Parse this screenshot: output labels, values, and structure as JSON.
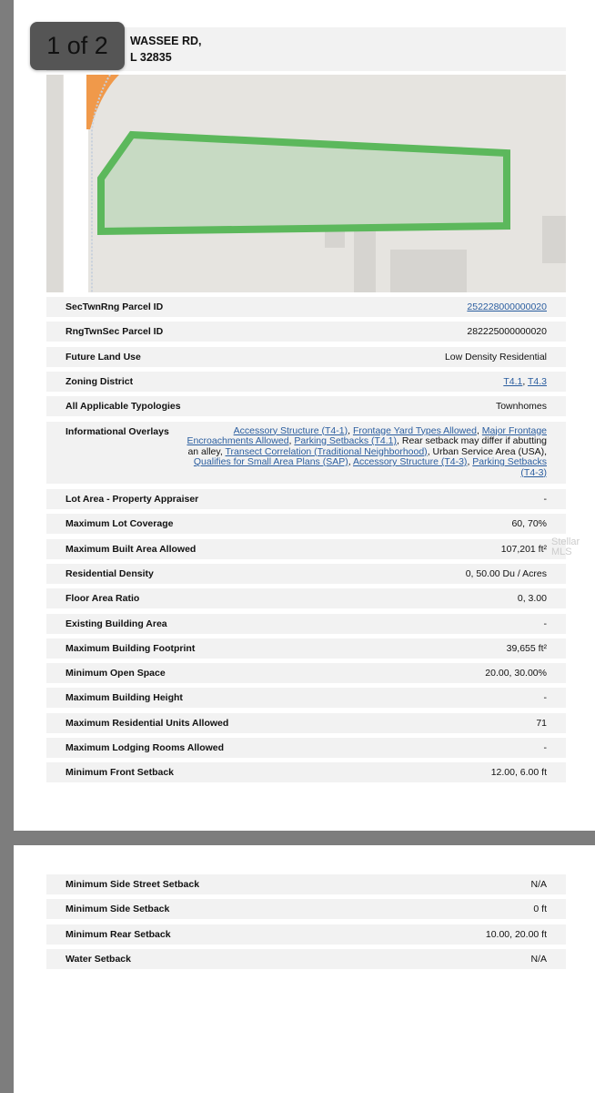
{
  "page_indicator": "1 of 2",
  "address": {
    "line1": "WASSEE RD,",
    "line2": "L 32835"
  },
  "rows": [
    {
      "label": "SecTwnRng Parcel ID",
      "value": "252228000000020",
      "link": true
    },
    {
      "label": "RngTwnSec Parcel ID",
      "value": "282225000000020"
    },
    {
      "label": "Future Land Use",
      "value": "Low Density Residential"
    },
    {
      "label": "Zoning District",
      "links": [
        "T4.1",
        "T4.3"
      ]
    },
    {
      "label": "All Applicable Typologies",
      "value": "Townhomes"
    },
    {
      "label": "Informational Overlays",
      "overlays": [
        {
          "text": "Accessory Structure (T4-1)",
          "link": true
        },
        {
          "text": "Frontage Yard Types Allowed",
          "link": true
        },
        {
          "text": "Major Frontage Encroachments Allowed",
          "link": true
        },
        {
          "text": "Parking Setbacks (T4.1)",
          "link": true
        },
        {
          "text": "Rear setback may differ if abutting an alley",
          "link": false
        },
        {
          "text": "Transect Correlation (Traditional Neighborhood)",
          "link": true
        },
        {
          "text": "Urban Service Area (USA)",
          "link": false
        },
        {
          "text": "Qualifies for Small Area Plans (SAP)",
          "link": true
        },
        {
          "text": "Accessory Structure (T4-3)",
          "link": true
        },
        {
          "text": "Parking Setbacks (T4-3)",
          "link": true
        }
      ]
    },
    {
      "label": "Lot Area - Property Appraiser",
      "value": "-"
    },
    {
      "label": "Maximum Lot Coverage",
      "value": "60, 70%"
    },
    {
      "label": "Maximum Built Area Allowed",
      "value": "107,201 ft²"
    },
    {
      "label": "Residential Density",
      "value": "0, 50.00 Du / Acres"
    },
    {
      "label": "Floor Area Ratio",
      "value": "0, 3.00"
    },
    {
      "label": "Existing Building Area",
      "value": "-"
    },
    {
      "label": "Maximum Building Footprint",
      "value": "39,655 ft²"
    },
    {
      "label": "Minimum Open Space",
      "value": "20.00, 30.00%"
    },
    {
      "label": "Maximum Building Height",
      "value": "-"
    },
    {
      "label": "Maximum Residential Units Allowed",
      "value": "71"
    },
    {
      "label": "Maximum Lodging Rooms Allowed",
      "value": "-"
    },
    {
      "label": "Minimum Front Setback",
      "value": "12.00, 6.00 ft"
    }
  ],
  "rows2": [
    {
      "label": "Minimum Side Street Setback",
      "value": "N/A"
    },
    {
      "label": "Minimum Side Setback",
      "value": "0 ft"
    },
    {
      "label": "Minimum Rear Setback",
      "value": "10.00, 20.00 ft"
    },
    {
      "label": "Water Setback",
      "value": "N/A"
    }
  ],
  "watermark": "Stellar MLS",
  "colors": {
    "parcel": "#5cb85c",
    "road_orange": "#f0994a",
    "link": "#2a5d9f"
  }
}
